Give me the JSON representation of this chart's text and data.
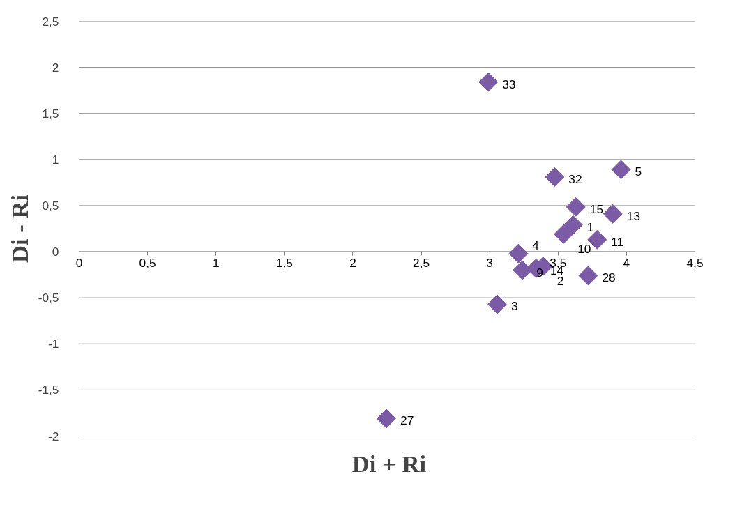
{
  "chart_data": {
    "type": "scatter",
    "xlabel": "Di + Ri",
    "ylabel": "Di - Ri",
    "x": [
      2.99,
      2.245,
      3.96,
      3.475,
      3.63,
      3.9,
      3.61,
      3.54,
      3.785,
      3.21,
      3.24,
      3.34,
      3.39,
      3.72,
      3.055
    ],
    "series": [
      {
        "color": "#7b5aa6",
        "values": [
          1.84,
          -1.81,
          0.89,
          0.81,
          0.485,
          0.41,
          0.29,
          0.19,
          0.13,
          -0.02,
          -0.2,
          -0.18,
          -0.16,
          -0.26,
          -0.57
        ]
      }
    ],
    "annotations": [
      {
        "text": "33",
        "x": 2.99,
        "y": 1.84
      },
      {
        "text": "27",
        "x": 2.245,
        "y": -1.81
      },
      {
        "text": "5",
        "x": 3.96,
        "y": 0.89
      },
      {
        "text": "32",
        "x": 3.475,
        "y": 0.81
      },
      {
        "text": "15",
        "x": 3.63,
        "y": 0.485
      },
      {
        "text": "13",
        "x": 3.9,
        "y": 0.41
      },
      {
        "text": "1",
        "x": 3.61,
        "y": 0.29
      },
      {
        "text": "10",
        "x": 3.54,
        "y": 0.19
      },
      {
        "text": "11",
        "x": 3.785,
        "y": 0.13
      },
      {
        "text": "4",
        "x": 3.21,
        "y": -0.02
      },
      {
        "text": "9",
        "x": 3.24,
        "y": -0.2
      },
      {
        "text": "14",
        "x": 3.34,
        "y": -0.18
      },
      {
        "text": "2",
        "x": 3.39,
        "y": -0.16
      },
      {
        "text": "28",
        "x": 3.72,
        "y": -0.26
      },
      {
        "text": "3",
        "x": 3.055,
        "y": -0.57
      }
    ],
    "xlim": [
      0,
      4.5
    ],
    "ylim": [
      -2,
      2.5
    ],
    "xticks": [
      0,
      {
        "value": 0.5,
        "label": "0,5"
      },
      1,
      {
        "value": 1.5,
        "label": "1,5"
      },
      2,
      {
        "value": 2.5,
        "label": "2,5"
      },
      3,
      {
        "value": 3.5,
        "label": "3,5"
      },
      4,
      {
        "value": 4.5,
        "label": "4,5"
      }
    ],
    "yticks": [
      -2,
      {
        "value": -1.5,
        "label": "-1,5"
      },
      -1,
      {
        "value": -0.5,
        "label": "-0,5"
      },
      0,
      {
        "value": 0.5,
        "label": "0,5"
      },
      1,
      {
        "value": 1.5,
        "label": "1,5"
      },
      2,
      {
        "value": 2.5,
        "label": "2,5"
      }
    ],
    "grid": "y",
    "marker": "diamond"
  }
}
